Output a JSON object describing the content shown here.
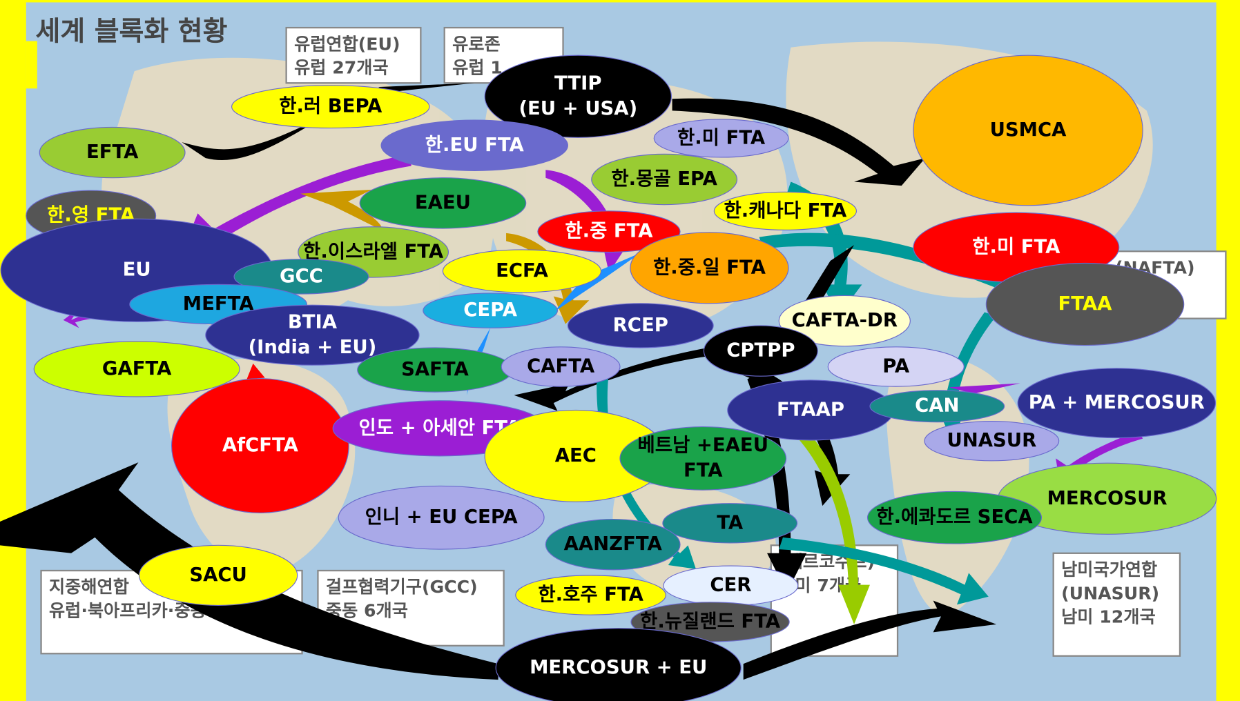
{
  "title": "세계 블록화 현황",
  "map_labels": [
    [
      "유럽연합(EU)",
      "유럽 27개국"
    ],
    [
      "유로존",
      "유럽 1"
    ],
    [
      "지중해연합",
      "유럽·북아프리카·중동"
    ],
    [
      "걸프협력기구(GCC)",
      "중동 6개국"
    ],
    [
      "남미국가연합",
      "(UNASUR)",
      "남미 12개국"
    ],
    [
      "(NAFTA)"
    ],
    [
      "(메르코수르)",
      "남미 7개국"
    ]
  ],
  "nodes": [
    {
      "lines": [
        "TTIP",
        "(EU  + USA)"
      ]
    },
    {
      "lines": [
        "한.러 BEPA"
      ]
    },
    {
      "lines": [
        "EFTA"
      ]
    },
    {
      "lines": [
        "한.EU FTA"
      ]
    },
    {
      "lines": [
        "한.미 FTA"
      ]
    },
    {
      "lines": [
        "USMCA"
      ]
    },
    {
      "lines": [
        "한.몽골 EPA"
      ]
    },
    {
      "lines": [
        "EAEU"
      ]
    },
    {
      "lines": [
        "한.영 FTA"
      ]
    },
    {
      "lines": [
        "한.캐나다 FTA"
      ]
    },
    {
      "lines": [
        "한.미  FTA"
      ]
    },
    {
      "lines": [
        "한.중 FTA"
      ]
    },
    {
      "lines": [
        "한.이스라엘 FTA"
      ]
    },
    {
      "lines": [
        "EU"
      ]
    },
    {
      "lines": [
        "GCC"
      ]
    },
    {
      "lines": [
        "ECFA"
      ]
    },
    {
      "lines": [
        "한.중.일 FTA"
      ]
    },
    {
      "lines": [
        "FTAA"
      ]
    },
    {
      "lines": [
        "MEFTA"
      ]
    },
    {
      "lines": [
        "CEPA"
      ]
    },
    {
      "lines": [
        "RCEP"
      ]
    },
    {
      "lines": [
        "CAFTA-DR"
      ]
    },
    {
      "lines": [
        "BTIA",
        "(India + EU)"
      ]
    },
    {
      "lines": [
        "CPTPP"
      ]
    },
    {
      "lines": [
        "GAFTA"
      ]
    },
    {
      "lines": [
        "SAFTA"
      ]
    },
    {
      "lines": [
        "CAFTA"
      ]
    },
    {
      "lines": [
        "PA"
      ]
    },
    {
      "lines": [
        "PA + MERCOSUR"
      ]
    },
    {
      "lines": [
        "FTAAP"
      ]
    },
    {
      "lines": [
        "CAN"
      ]
    },
    {
      "lines": [
        "AfCFTA"
      ]
    },
    {
      "lines": [
        "인도 + 아세안 FTA"
      ]
    },
    {
      "lines": [
        "AEC"
      ]
    },
    {
      "lines": [
        "UNASUR"
      ]
    },
    {
      "lines": [
        "베트남 +EAEU",
        "FTA"
      ]
    },
    {
      "lines": [
        "MERCOSUR"
      ]
    },
    {
      "lines": [
        "인니 + EU CEPA"
      ]
    },
    {
      "lines": [
        "TA"
      ]
    },
    {
      "lines": [
        "한.에콰도르 SECA"
      ]
    },
    {
      "lines": [
        "AANZFTA"
      ]
    },
    {
      "lines": [
        "SACU"
      ]
    },
    {
      "lines": [
        "CER"
      ]
    },
    {
      "lines": [
        "한.호주 FTA"
      ]
    },
    {
      "lines": [
        "한.뉴질랜드 FTA"
      ]
    },
    {
      "lines": [
        "MERCOSUR + EU"
      ]
    }
  ]
}
